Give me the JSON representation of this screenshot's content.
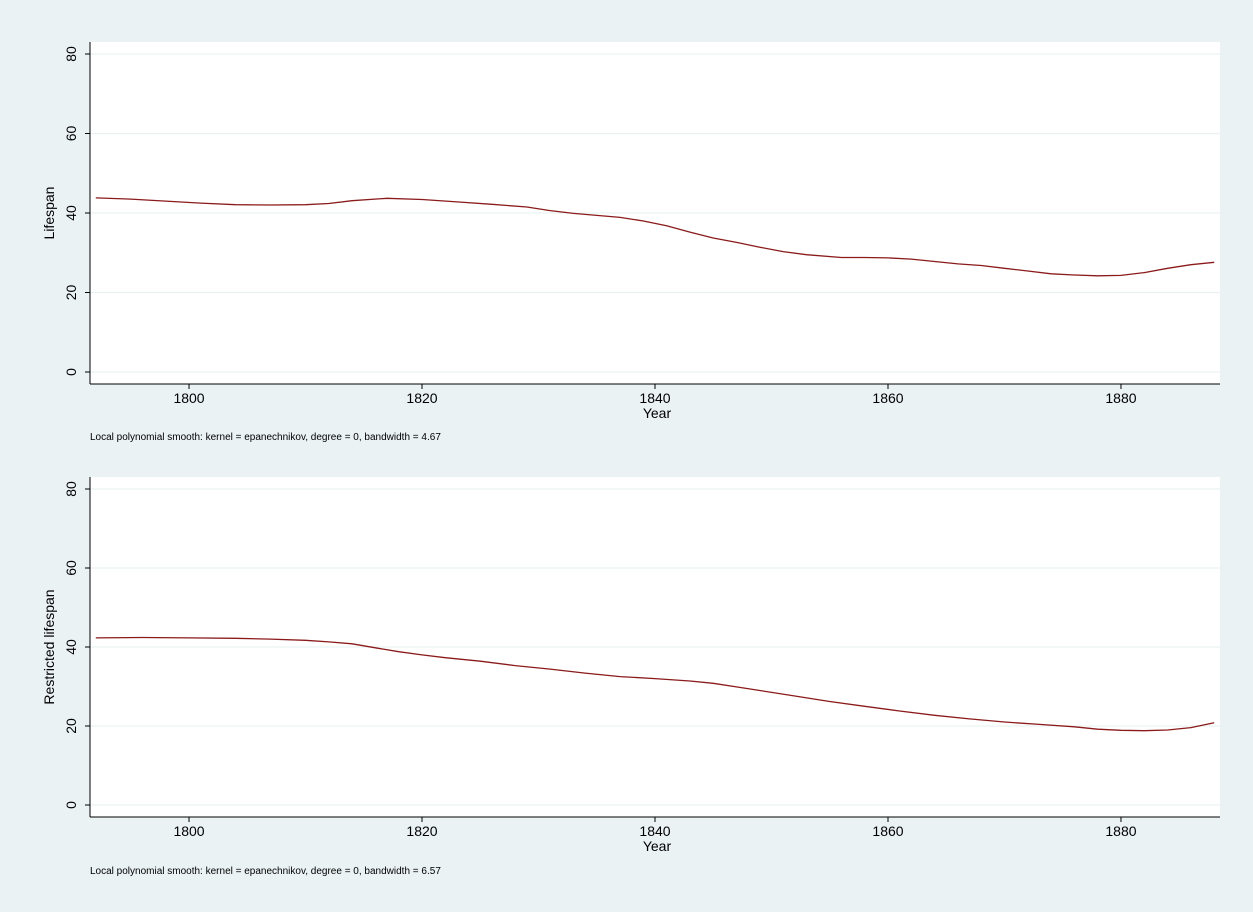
{
  "colors": {
    "background": "#eaf2f3",
    "plot_area": "#ffffff",
    "grid": "#eaf2f3",
    "line": "#8b1a1a",
    "text": "#000000"
  },
  "chart_data": [
    {
      "type": "line",
      "xlabel": "Year",
      "ylabel": "Lifespan",
      "note": "Local polynomial smooth: kernel = epanechnikov, degree = 0, bandwidth = 4.67",
      "xlim": [
        1791.5,
        1888.5
      ],
      "ylim": [
        0,
        80
      ],
      "xticks": [
        "1800",
        "1820",
        "1840",
        "1860",
        "1880"
      ],
      "yticks": [
        "0",
        "20",
        "40",
        "60",
        "80"
      ],
      "grid": true,
      "series": [
        {
          "x": [
            1792,
            1795,
            1798,
            1801,
            1804,
            1807,
            1810,
            1812,
            1814,
            1817,
            1820,
            1823,
            1826,
            1829,
            1831,
            1833,
            1835,
            1837,
            1839,
            1841,
            1843,
            1845,
            1847,
            1849,
            1851,
            1853,
            1856,
            1858,
            1860,
            1862,
            1864,
            1866,
            1868,
            1870,
            1872,
            1874,
            1876,
            1878,
            1880,
            1882,
            1884,
            1886,
            1888
          ],
          "y": [
            43.8,
            43.5,
            43.0,
            42.5,
            42.1,
            42.0,
            42.1,
            42.4,
            43.1,
            43.7,
            43.4,
            42.8,
            42.2,
            41.5,
            40.6,
            39.9,
            39.4,
            38.9,
            38.0,
            36.8,
            35.2,
            33.7,
            32.6,
            31.4,
            30.3,
            29.5,
            28.8,
            28.8,
            28.7,
            28.4,
            27.8,
            27.2,
            26.8,
            26.1,
            25.4,
            24.7,
            24.4,
            24.2,
            24.3,
            25.0,
            26.1,
            27.0,
            27.6
          ]
        }
      ]
    },
    {
      "type": "line",
      "xlabel": "Year",
      "ylabel": "Restricted lifespan",
      "note": "Local polynomial smooth: kernel = epanechnikov, degree = 0, bandwidth = 6.57",
      "xlim": [
        1791.5,
        1888.5
      ],
      "ylim": [
        0,
        80
      ],
      "xticks": [
        "1800",
        "1820",
        "1840",
        "1860",
        "1880"
      ],
      "yticks": [
        "0",
        "20",
        "40",
        "60",
        "80"
      ],
      "grid": true,
      "series": [
        {
          "x": [
            1792,
            1796,
            1800,
            1804,
            1807,
            1810,
            1812,
            1814,
            1816,
            1818,
            1820,
            1822,
            1825,
            1828,
            1831,
            1834,
            1837,
            1840,
            1843,
            1845,
            1847,
            1849,
            1852,
            1855,
            1858,
            1861,
            1864,
            1867,
            1870,
            1873,
            1876,
            1878,
            1880,
            1882,
            1884,
            1886,
            1888
          ],
          "y": [
            42.3,
            42.4,
            42.3,
            42.2,
            42.0,
            41.7,
            41.3,
            40.8,
            39.8,
            38.8,
            38.0,
            37.3,
            36.4,
            35.3,
            34.4,
            33.4,
            32.5,
            32.0,
            31.4,
            30.8,
            29.9,
            29.0,
            27.6,
            26.2,
            25.0,
            23.8,
            22.7,
            21.8,
            21.0,
            20.4,
            19.8,
            19.2,
            18.9,
            18.8,
            19.0,
            19.6,
            20.8
          ]
        }
      ]
    }
  ]
}
